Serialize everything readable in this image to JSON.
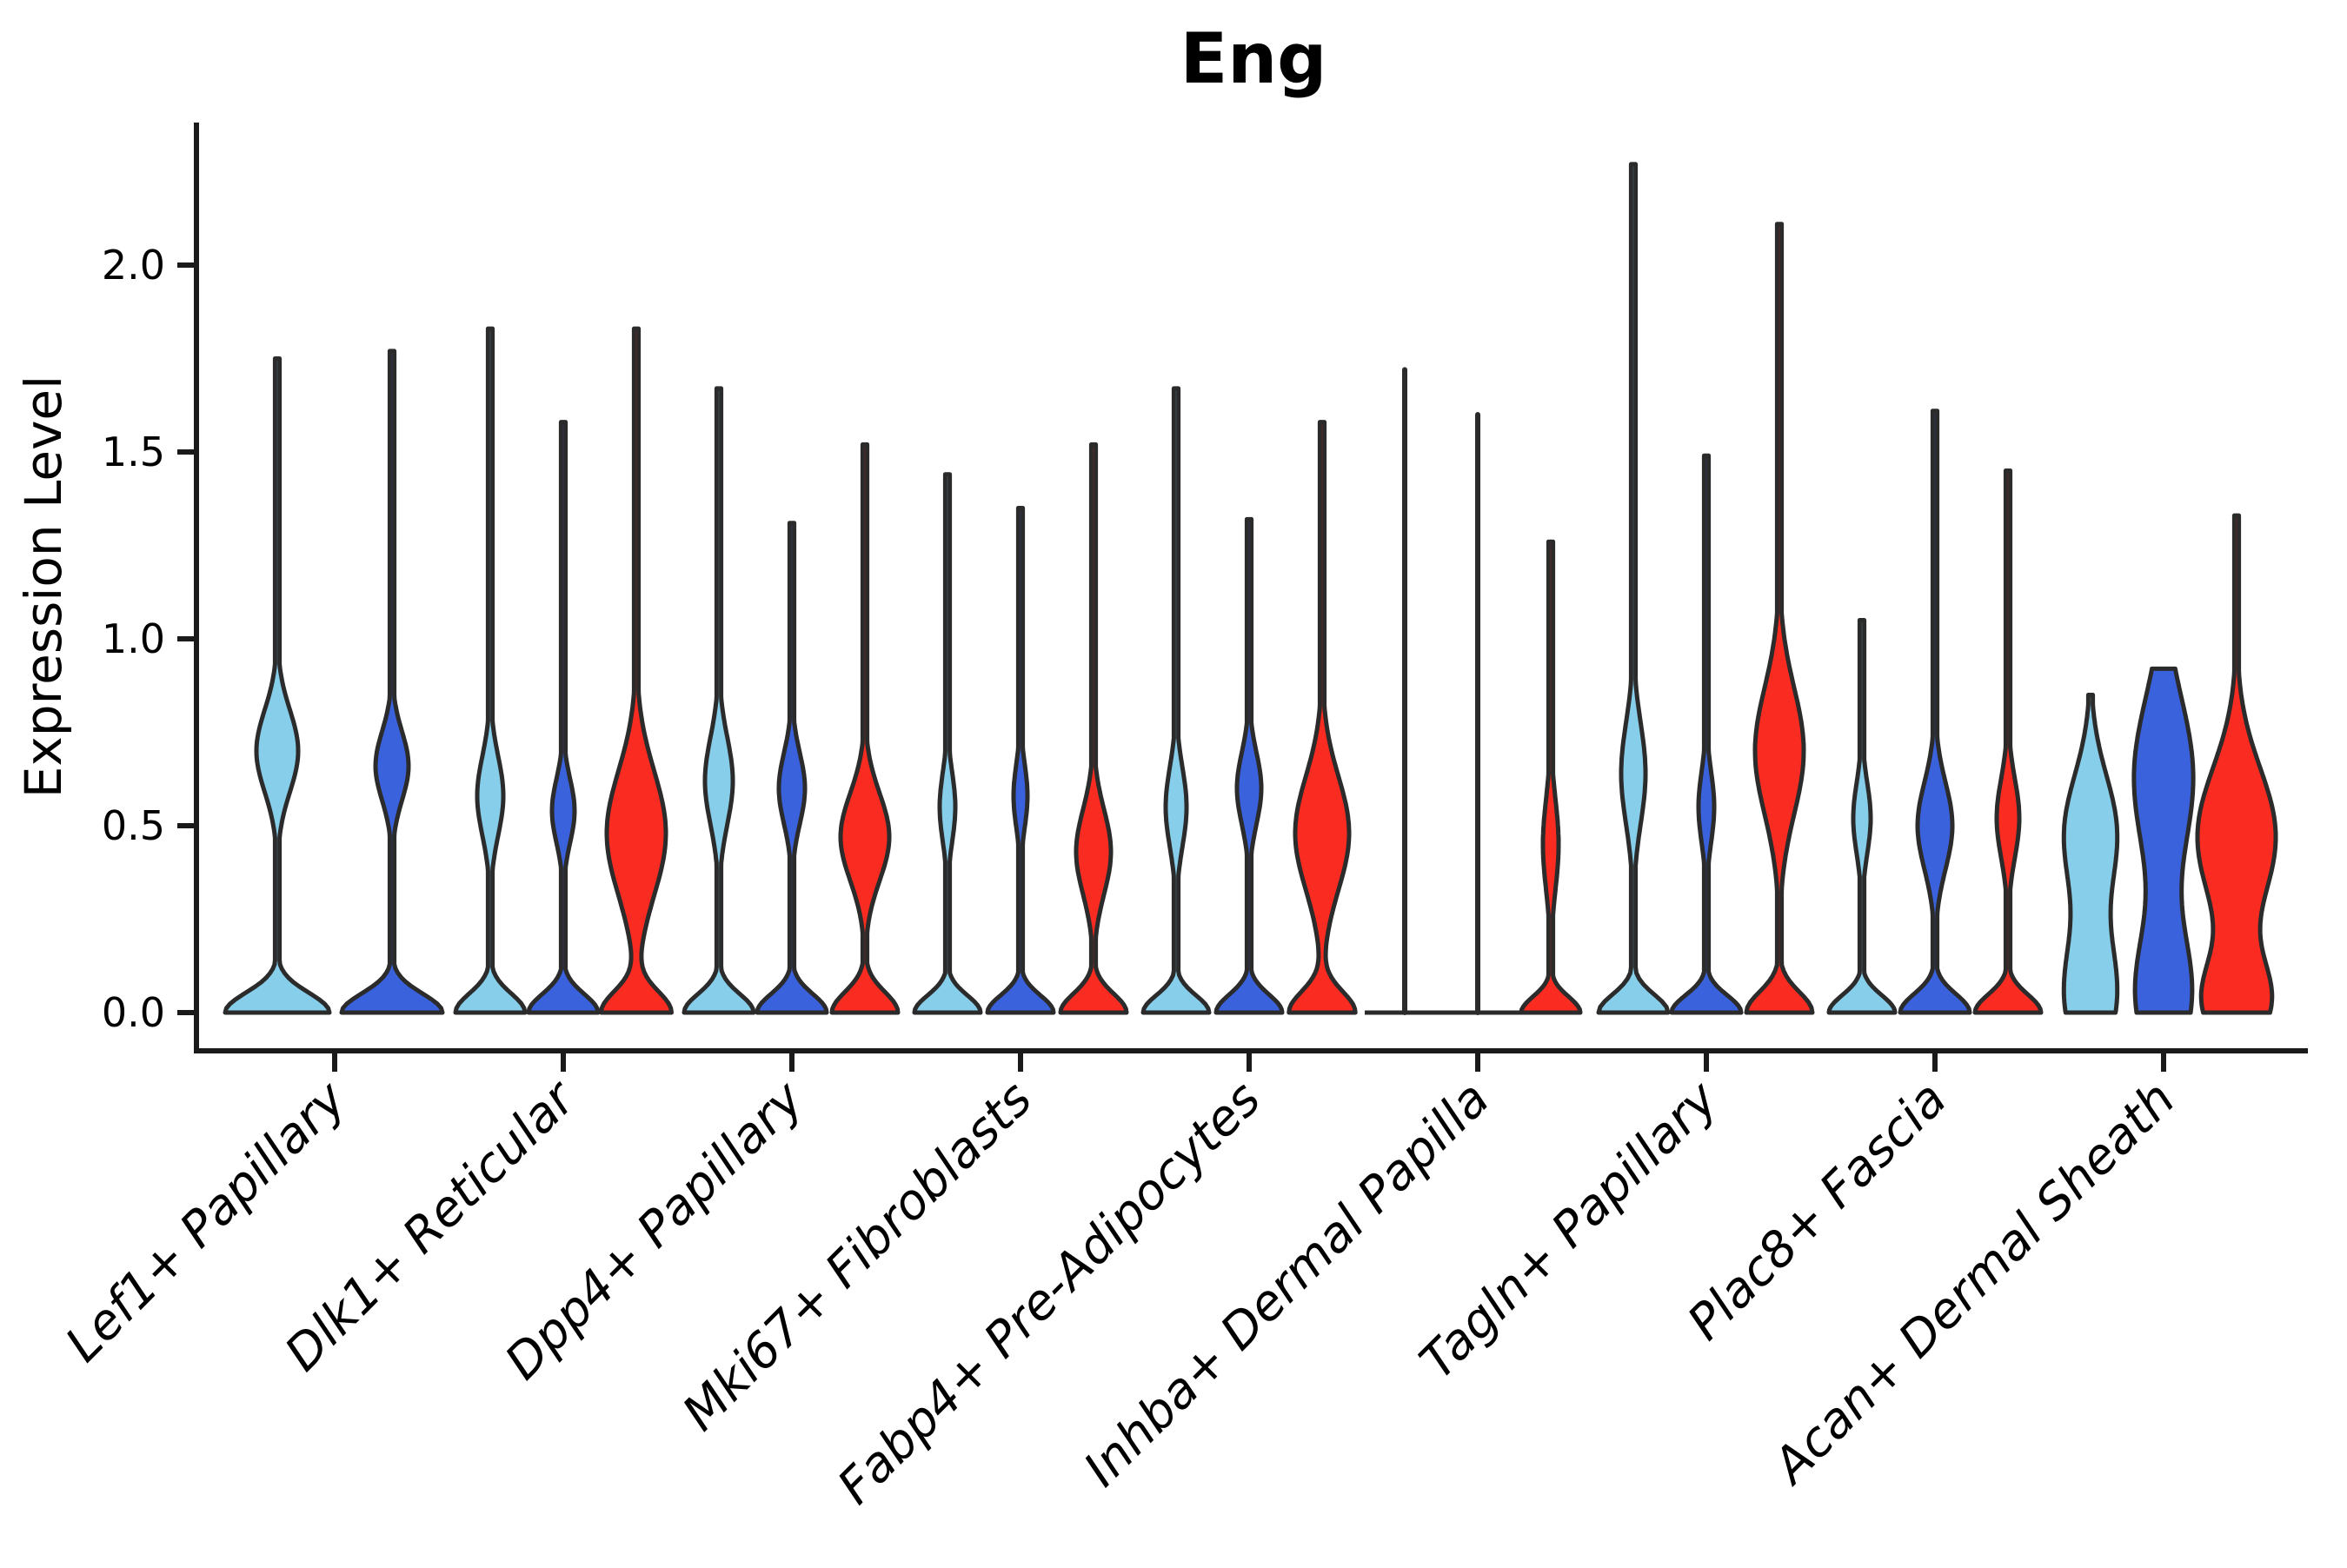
{
  "title": "Eng",
  "colors": {
    "light_blue": "#87CEEB",
    "dark_blue": "#3A62DD",
    "red": "#FA2B20",
    "outline": "#2b2b2b",
    "axis": "#1a1a1a"
  },
  "chart_data": {
    "type": "violin",
    "title": "Eng",
    "ylabel": "Expression Level",
    "ylim": [
      0,
      2.4
    ],
    "grid": false,
    "legend": "none",
    "y_ticks": [
      {
        "v": 0.0,
        "label": "0.0"
      },
      {
        "v": 0.5,
        "label": "0.5"
      },
      {
        "v": 1.0,
        "label": "1.0"
      },
      {
        "v": 1.5,
        "label": "1.5"
      },
      {
        "v": 2.0,
        "label": "2.0"
      }
    ],
    "categories": [
      "Lef1+ Papillary",
      "Dlk1+ Reticular",
      "Dpp4+ Papillary",
      "Mki67+ Fibroblasts",
      "Fabp4+ Pre-Adipocytes",
      "Inhba+ Dermal Papilla",
      "Tagln+ Papillary",
      "Plac8+ Fascia",
      "Acan+ Dermal Sheath"
    ],
    "series": [
      {
        "name": "light_blue",
        "color": "#87CEEB",
        "max_expression": [
          1.75,
          1.83,
          1.67,
          1.44,
          1.67,
          1.72,
          2.27,
          1.05,
          0.85
        ]
      },
      {
        "name": "dark_blue",
        "color": "#3A62DD",
        "max_expression": [
          1.77,
          1.58,
          1.31,
          1.35,
          1.32,
          1.6,
          1.49,
          1.61,
          0.92
        ]
      },
      {
        "name": "red",
        "color": "#FA2B20",
        "max_expression": [
          null,
          1.83,
          1.52,
          1.52,
          1.58,
          1.26,
          2.11,
          1.45,
          1.33
        ]
      }
    ],
    "violins": [
      {
        "g": 0,
        "s": "light_blue",
        "dx": -66,
        "vmax": 1.75,
        "base": [
          60,
          0.075
        ],
        "bumps": [
          [
            0.7,
            24,
            0.155
          ]
        ]
      },
      {
        "g": 0,
        "s": "dark_blue",
        "dx": 66,
        "vmax": 1.77,
        "base": [
          58,
          0.072
        ],
        "bumps": [
          [
            0.66,
            19,
            0.13
          ]
        ]
      },
      {
        "g": 1,
        "s": "light_blue",
        "dx": -84,
        "vmax": 1.83,
        "base": [
          40,
          0.072
        ],
        "bumps": [
          [
            0.58,
            15,
            0.15
          ]
        ]
      },
      {
        "g": 1,
        "s": "dark_blue",
        "dx": 0,
        "vmax": 1.58,
        "base": [
          40,
          0.07
        ],
        "bumps": [
          [
            0.54,
            13,
            0.12
          ]
        ]
      },
      {
        "g": 1,
        "s": "red",
        "dx": 84,
        "vmax": 1.83,
        "base": [
          40,
          0.08
        ],
        "bumps": [
          [
            0.48,
            34,
            0.235
          ]
        ]
      },
      {
        "g": 2,
        "s": "light_blue",
        "dx": -84,
        "vmax": 1.67,
        "base": [
          40,
          0.07
        ],
        "bumps": [
          [
            0.62,
            16,
            0.165
          ]
        ]
      },
      {
        "g": 2,
        "s": "dark_blue",
        "dx": 0,
        "vmax": 1.31,
        "base": [
          40,
          0.07
        ],
        "bumps": [
          [
            0.6,
            15,
            0.135
          ]
        ]
      },
      {
        "g": 2,
        "s": "red",
        "dx": 84,
        "vmax": 1.52,
        "base": [
          38,
          0.078
        ],
        "bumps": [
          [
            0.47,
            28,
            0.165
          ]
        ]
      },
      {
        "g": 3,
        "s": "light_blue",
        "dx": -84,
        "vmax": 1.44,
        "base": [
          38,
          0.065
        ],
        "bumps": [
          [
            0.55,
            9,
            0.13
          ]
        ]
      },
      {
        "g": 3,
        "s": "dark_blue",
        "dx": 0,
        "vmax": 1.35,
        "base": [
          38,
          0.065
        ],
        "bumps": [
          [
            0.58,
            8,
            0.12
          ]
        ]
      },
      {
        "g": 3,
        "s": "red",
        "dx": 84,
        "vmax": 1.52,
        "base": [
          38,
          0.072
        ],
        "bumps": [
          [
            0.43,
            20,
            0.16
          ]
        ]
      },
      {
        "g": 4,
        "s": "light_blue",
        "dx": -84,
        "vmax": 1.67,
        "base": [
          38,
          0.065
        ],
        "bumps": [
          [
            0.55,
            12,
            0.15
          ]
        ]
      },
      {
        "g": 4,
        "s": "dark_blue",
        "dx": 0,
        "vmax": 1.32,
        "base": [
          38,
          0.068
        ],
        "bumps": [
          [
            0.6,
            14,
            0.135
          ]
        ]
      },
      {
        "g": 4,
        "s": "red",
        "dx": 84,
        "vmax": 1.58,
        "base": [
          38,
          0.08
        ],
        "bumps": [
          [
            0.48,
            31,
            0.215
          ]
        ]
      },
      {
        "g": 5,
        "s": "light_blue",
        "dx": -84,
        "vmax": 1.72,
        "flat": true
      },
      {
        "g": 5,
        "s": "dark_blue",
        "dx": 0,
        "vmax": 1.6,
        "flat": true
      },
      {
        "g": 5,
        "s": "red",
        "dx": 84,
        "vmax": 1.26,
        "base": [
          34,
          0.06
        ],
        "bumps": [
          [
            0.45,
            9,
            0.17
          ]
        ]
      },
      {
        "g": 6,
        "s": "light_blue",
        "dx": -84,
        "vmax": 2.27,
        "base": [
          40,
          0.068
        ],
        "bumps": [
          [
            0.64,
            14,
            0.19
          ]
        ]
      },
      {
        "g": 6,
        "s": "dark_blue",
        "dx": 0,
        "vmax": 1.49,
        "base": [
          40,
          0.065
        ],
        "bumps": [
          [
            0.55,
            9,
            0.135
          ]
        ]
      },
      {
        "g": 6,
        "s": "red",
        "dx": 84,
        "vmax": 2.11,
        "base": [
          38,
          0.078
        ],
        "bumps": [
          [
            0.7,
            28,
            0.24
          ]
        ]
      },
      {
        "g": 7,
        "s": "light_blue",
        "dx": -84,
        "vmax": 1.05,
        "base": [
          38,
          0.065
        ],
        "bumps": [
          [
            0.52,
            10,
            0.135
          ]
        ]
      },
      {
        "g": 7,
        "s": "dark_blue",
        "dx": 0,
        "vmax": 1.61,
        "base": [
          40,
          0.07
        ],
        "bumps": [
          [
            0.5,
            20,
            0.165
          ]
        ]
      },
      {
        "g": 7,
        "s": "red",
        "dx": 84,
        "vmax": 1.45,
        "base": [
          38,
          0.068
        ],
        "bumps": [
          [
            0.52,
            13,
            0.15
          ]
        ]
      },
      {
        "g": 8,
        "s": "light_blue",
        "dx": -84,
        "vmax": 0.85,
        "base": [
          0,
          1
        ],
        "bumps": [
          [
            0.05,
            30,
            0.22
          ],
          [
            0.48,
            30,
            0.22
          ]
        ]
      },
      {
        "g": 8,
        "s": "dark_blue",
        "dx": 0,
        "vmax": 0.92,
        "base": [
          0,
          1
        ],
        "bumps": [
          [
            0.05,
            32,
            0.24
          ],
          [
            0.63,
            34,
            0.3
          ]
        ]
      },
      {
        "g": 8,
        "s": "red",
        "dx": 84,
        "vmax": 1.33,
        "base": [
          0,
          1
        ],
        "bumps": [
          [
            0.03,
            38,
            0.16
          ],
          [
            0.47,
            45,
            0.26
          ]
        ]
      }
    ],
    "flat_baseline_group": 5
  }
}
